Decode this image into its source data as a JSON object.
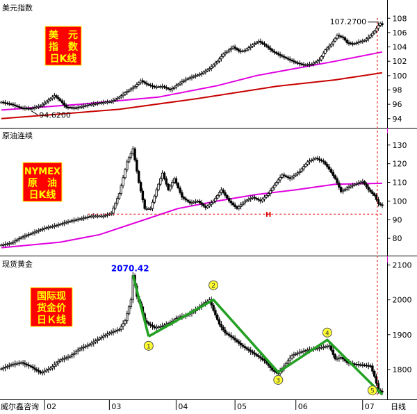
{
  "chart_data": [
    {
      "type": "line",
      "panel_title": "美元指数",
      "badge_lines": [
        "美　元",
        "指　数",
        "日K线"
      ],
      "y_ticks": [
        94,
        96,
        98,
        100,
        102,
        104,
        106,
        108
      ],
      "ylim": [
        93.3,
        108.8
      ],
      "annotations": {
        "high": "107.2700",
        "low": "94.6200"
      },
      "price_path": [
        [
          0,
          96.3
        ],
        [
          5,
          96.0
        ],
        [
          10,
          95.5
        ],
        [
          15,
          95.4
        ],
        [
          20,
          95.8
        ],
        [
          24,
          96.6
        ],
        [
          27,
          97.2
        ],
        [
          30,
          96.5
        ],
        [
          33,
          95.6
        ],
        [
          38,
          95.5
        ],
        [
          44,
          95.9
        ],
        [
          50,
          96.2
        ],
        [
          56,
          96.4
        ],
        [
          60,
          97.0
        ],
        [
          64,
          97.8
        ],
        [
          68,
          98.5
        ],
        [
          71,
          99.3
        ],
        [
          74,
          98.8
        ],
        [
          78,
          98.4
        ],
        [
          82,
          98.5
        ],
        [
          86,
          98.0
        ],
        [
          90,
          98.8
        ],
        [
          94,
          99.5
        ],
        [
          98,
          99.9
        ],
        [
          102,
          100.3
        ],
        [
          106,
          101.0
        ],
        [
          110,
          102.0
        ],
        [
          113,
          103.0
        ],
        [
          116,
          103.6
        ],
        [
          118,
          104.0
        ],
        [
          121,
          103.4
        ],
        [
          124,
          103.5
        ],
        [
          128,
          104.3
        ],
        [
          131,
          104.8
        ],
        [
          134,
          104.3
        ],
        [
          138,
          103.4
        ],
        [
          142,
          102.8
        ],
        [
          146,
          102.3
        ],
        [
          150,
          101.8
        ],
        [
          154,
          101.5
        ],
        [
          158,
          101.6
        ],
        [
          162,
          102.2
        ],
        [
          165,
          103.6
        ],
        [
          168,
          104.4
        ],
        [
          171,
          105.6
        ],
        [
          174,
          105.3
        ],
        [
          176,
          104.6
        ],
        [
          179,
          104.4
        ],
        [
          182,
          104.7
        ],
        [
          185,
          104.9
        ],
        [
          188,
          105.6
        ],
        [
          190,
          106.2
        ],
        [
          192,
          107.0
        ],
        [
          193,
          107.27
        ],
        [
          194,
          107.1
        ]
      ],
      "ma_magenta": [
        [
          0,
          95.2
        ],
        [
          40,
          96.0
        ],
        [
          80,
          97.0
        ],
        [
          110,
          98.6
        ],
        [
          130,
          100.0
        ],
        [
          150,
          101.0
        ],
        [
          170,
          102.0
        ],
        [
          194,
          103.3
        ]
      ],
      "ma_red": [
        [
          0,
          94.0
        ],
        [
          60,
          95.3
        ],
        [
          100,
          96.8
        ],
        [
          140,
          98.5
        ],
        [
          170,
          99.4
        ],
        [
          194,
          100.4
        ]
      ]
    },
    {
      "type": "line",
      "panel_title": "原油连续",
      "badge_lines": [
        "NYMEX",
        "原　油",
        "日K线"
      ],
      "y_ticks": [
        80,
        90,
        100,
        110,
        120,
        130
      ],
      "ylim": [
        73,
        134
      ],
      "marker_label": "H",
      "price_path": [
        [
          0,
          76.5
        ],
        [
          5,
          77.5
        ],
        [
          10,
          80.5
        ],
        [
          16,
          83.0
        ],
        [
          22,
          85.5
        ],
        [
          28,
          87.0
        ],
        [
          34,
          89.0
        ],
        [
          40,
          90.5
        ],
        [
          46,
          92.0
        ],
        [
          52,
          92.0
        ],
        [
          56,
          93.5
        ],
        [
          60,
          104.0
        ],
        [
          64,
          121.0
        ],
        [
          67,
          128.0
        ],
        [
          70,
          110.0
        ],
        [
          73,
          96.0
        ],
        [
          76,
          96.0
        ],
        [
          79,
          106.0
        ],
        [
          82,
          115.0
        ],
        [
          85,
          106.0
        ],
        [
          88,
          112.0
        ],
        [
          92,
          102.0
        ],
        [
          96,
          99.0
        ],
        [
          100,
          100.0
        ],
        [
          104,
          96.5
        ],
        [
          108,
          100.0
        ],
        [
          112,
          106.0
        ],
        [
          116,
          100.0
        ],
        [
          120,
          96.0
        ],
        [
          124,
          100.0
        ],
        [
          128,
          102.0
        ],
        [
          132,
          100.0
        ],
        [
          136,
          104.0
        ],
        [
          140,
          110.0
        ],
        [
          143,
          114.0
        ],
        [
          147,
          112.0
        ],
        [
          152,
          116.0
        ],
        [
          156,
          121.0
        ],
        [
          160,
          123.0
        ],
        [
          164,
          121.0
        ],
        [
          167,
          117.0
        ],
        [
          170,
          112.0
        ],
        [
          173,
          105.0
        ],
        [
          176,
          107.0
        ],
        [
          180,
          109.0
        ],
        [
          184,
          110.5
        ],
        [
          187,
          106.0
        ],
        [
          190,
          103.0
        ],
        [
          192,
          98.5
        ],
        [
          194,
          97.5
        ]
      ],
      "ma_magenta": [
        [
          0,
          75.0
        ],
        [
          30,
          78.0
        ],
        [
          50,
          82.0
        ],
        [
          70,
          89.0
        ],
        [
          90,
          96.0
        ],
        [
          110,
          100.0
        ],
        [
          130,
          103.5
        ],
        [
          150,
          106.0
        ],
        [
          170,
          109.0
        ],
        [
          194,
          109.5
        ]
      ]
    },
    {
      "type": "line",
      "panel_title": "现货黄金",
      "badge_lines": [
        "国际现",
        "货金价",
        "日Ｋ线"
      ],
      "y_ticks": [
        1800,
        1900,
        2000,
        2100
      ],
      "ylim": [
        1720,
        2115
      ],
      "peak_label": "2070.42",
      "price_path": [
        [
          0,
          1802
        ],
        [
          5,
          1814
        ],
        [
          10,
          1820
        ],
        [
          15,
          1808
        ],
        [
          20,
          1790
        ],
        [
          25,
          1804
        ],
        [
          30,
          1828
        ],
        [
          35,
          1838
        ],
        [
          40,
          1860
        ],
        [
          45,
          1872
        ],
        [
          50,
          1890
        ],
        [
          55,
          1905
        ],
        [
          60,
          1915
        ],
        [
          63,
          1940
        ],
        [
          66,
          2000
        ],
        [
          67,
          2070
        ],
        [
          69,
          2010
        ],
        [
          71,
          1980
        ],
        [
          73,
          1940
        ],
        [
          75,
          1930
        ],
        [
          78,
          1920
        ],
        [
          82,
          1925
        ],
        [
          86,
          1935
        ],
        [
          90,
          1950
        ],
        [
          94,
          1955
        ],
        [
          98,
          1968
        ],
        [
          102,
          1985
        ],
        [
          106,
          2000
        ],
        [
          108,
          1970
        ],
        [
          111,
          1930
        ],
        [
          114,
          1905
        ],
        [
          118,
          1890
        ],
        [
          122,
          1870
        ],
        [
          126,
          1855
        ],
        [
          130,
          1840
        ],
        [
          134,
          1825
        ],
        [
          138,
          1798
        ],
        [
          141,
          1788
        ],
        [
          144,
          1810
        ],
        [
          148,
          1840
        ],
        [
          152,
          1850
        ],
        [
          156,
          1856
        ],
        [
          160,
          1860
        ],
        [
          164,
          1865
        ],
        [
          167,
          1868
        ],
        [
          170,
          1830
        ],
        [
          173,
          1835
        ],
        [
          176,
          1820
        ],
        [
          180,
          1815
        ],
        [
          184,
          1813
        ],
        [
          188,
          1810
        ],
        [
          190,
          1780
        ],
        [
          192,
          1740
        ],
        [
          194,
          1735
        ]
      ],
      "wave_lines": [
        [
          [
            67,
            2070.42
          ],
          [
            75,
            1895
          ]
        ],
        [
          [
            75,
            1895
          ],
          [
            108,
            2000
          ],
          [
            141,
            1792
          ],
          [
            166,
            1885
          ],
          [
            194,
            1728
          ]
        ]
      ],
      "wave_points": [
        {
          "label": "1",
          "x": 75,
          "y": 1868
        },
        {
          "label": "2",
          "x": 108,
          "y": 2042
        },
        {
          "label": "3",
          "x": 141,
          "y": 1770
        },
        {
          "label": "4",
          "x": 166,
          "y": 1906
        },
        {
          "label": "5",
          "x": 189,
          "y": 1740
        }
      ]
    }
  ],
  "x_axis": {
    "source": "威尔鑫咨询",
    "period": "日线",
    "month_ticks": [
      {
        "label": "02",
        "x": 22
      },
      {
        "label": "03",
        "x": 55
      },
      {
        "label": "04",
        "x": 89
      },
      {
        "label": "05",
        "x": 119
      },
      {
        "label": "06",
        "x": 150
      },
      {
        "label": "07",
        "x": 184
      }
    ]
  },
  "colors": {
    "up": "#000000",
    "ma_fast": "#e000e0",
    "ma_slow": "#c80000",
    "wave": "#22a022",
    "badge_bg": "#ff0000",
    "badge_fg": "#ffff00",
    "marker": "#e00000",
    "peak": "#0000ff"
  }
}
